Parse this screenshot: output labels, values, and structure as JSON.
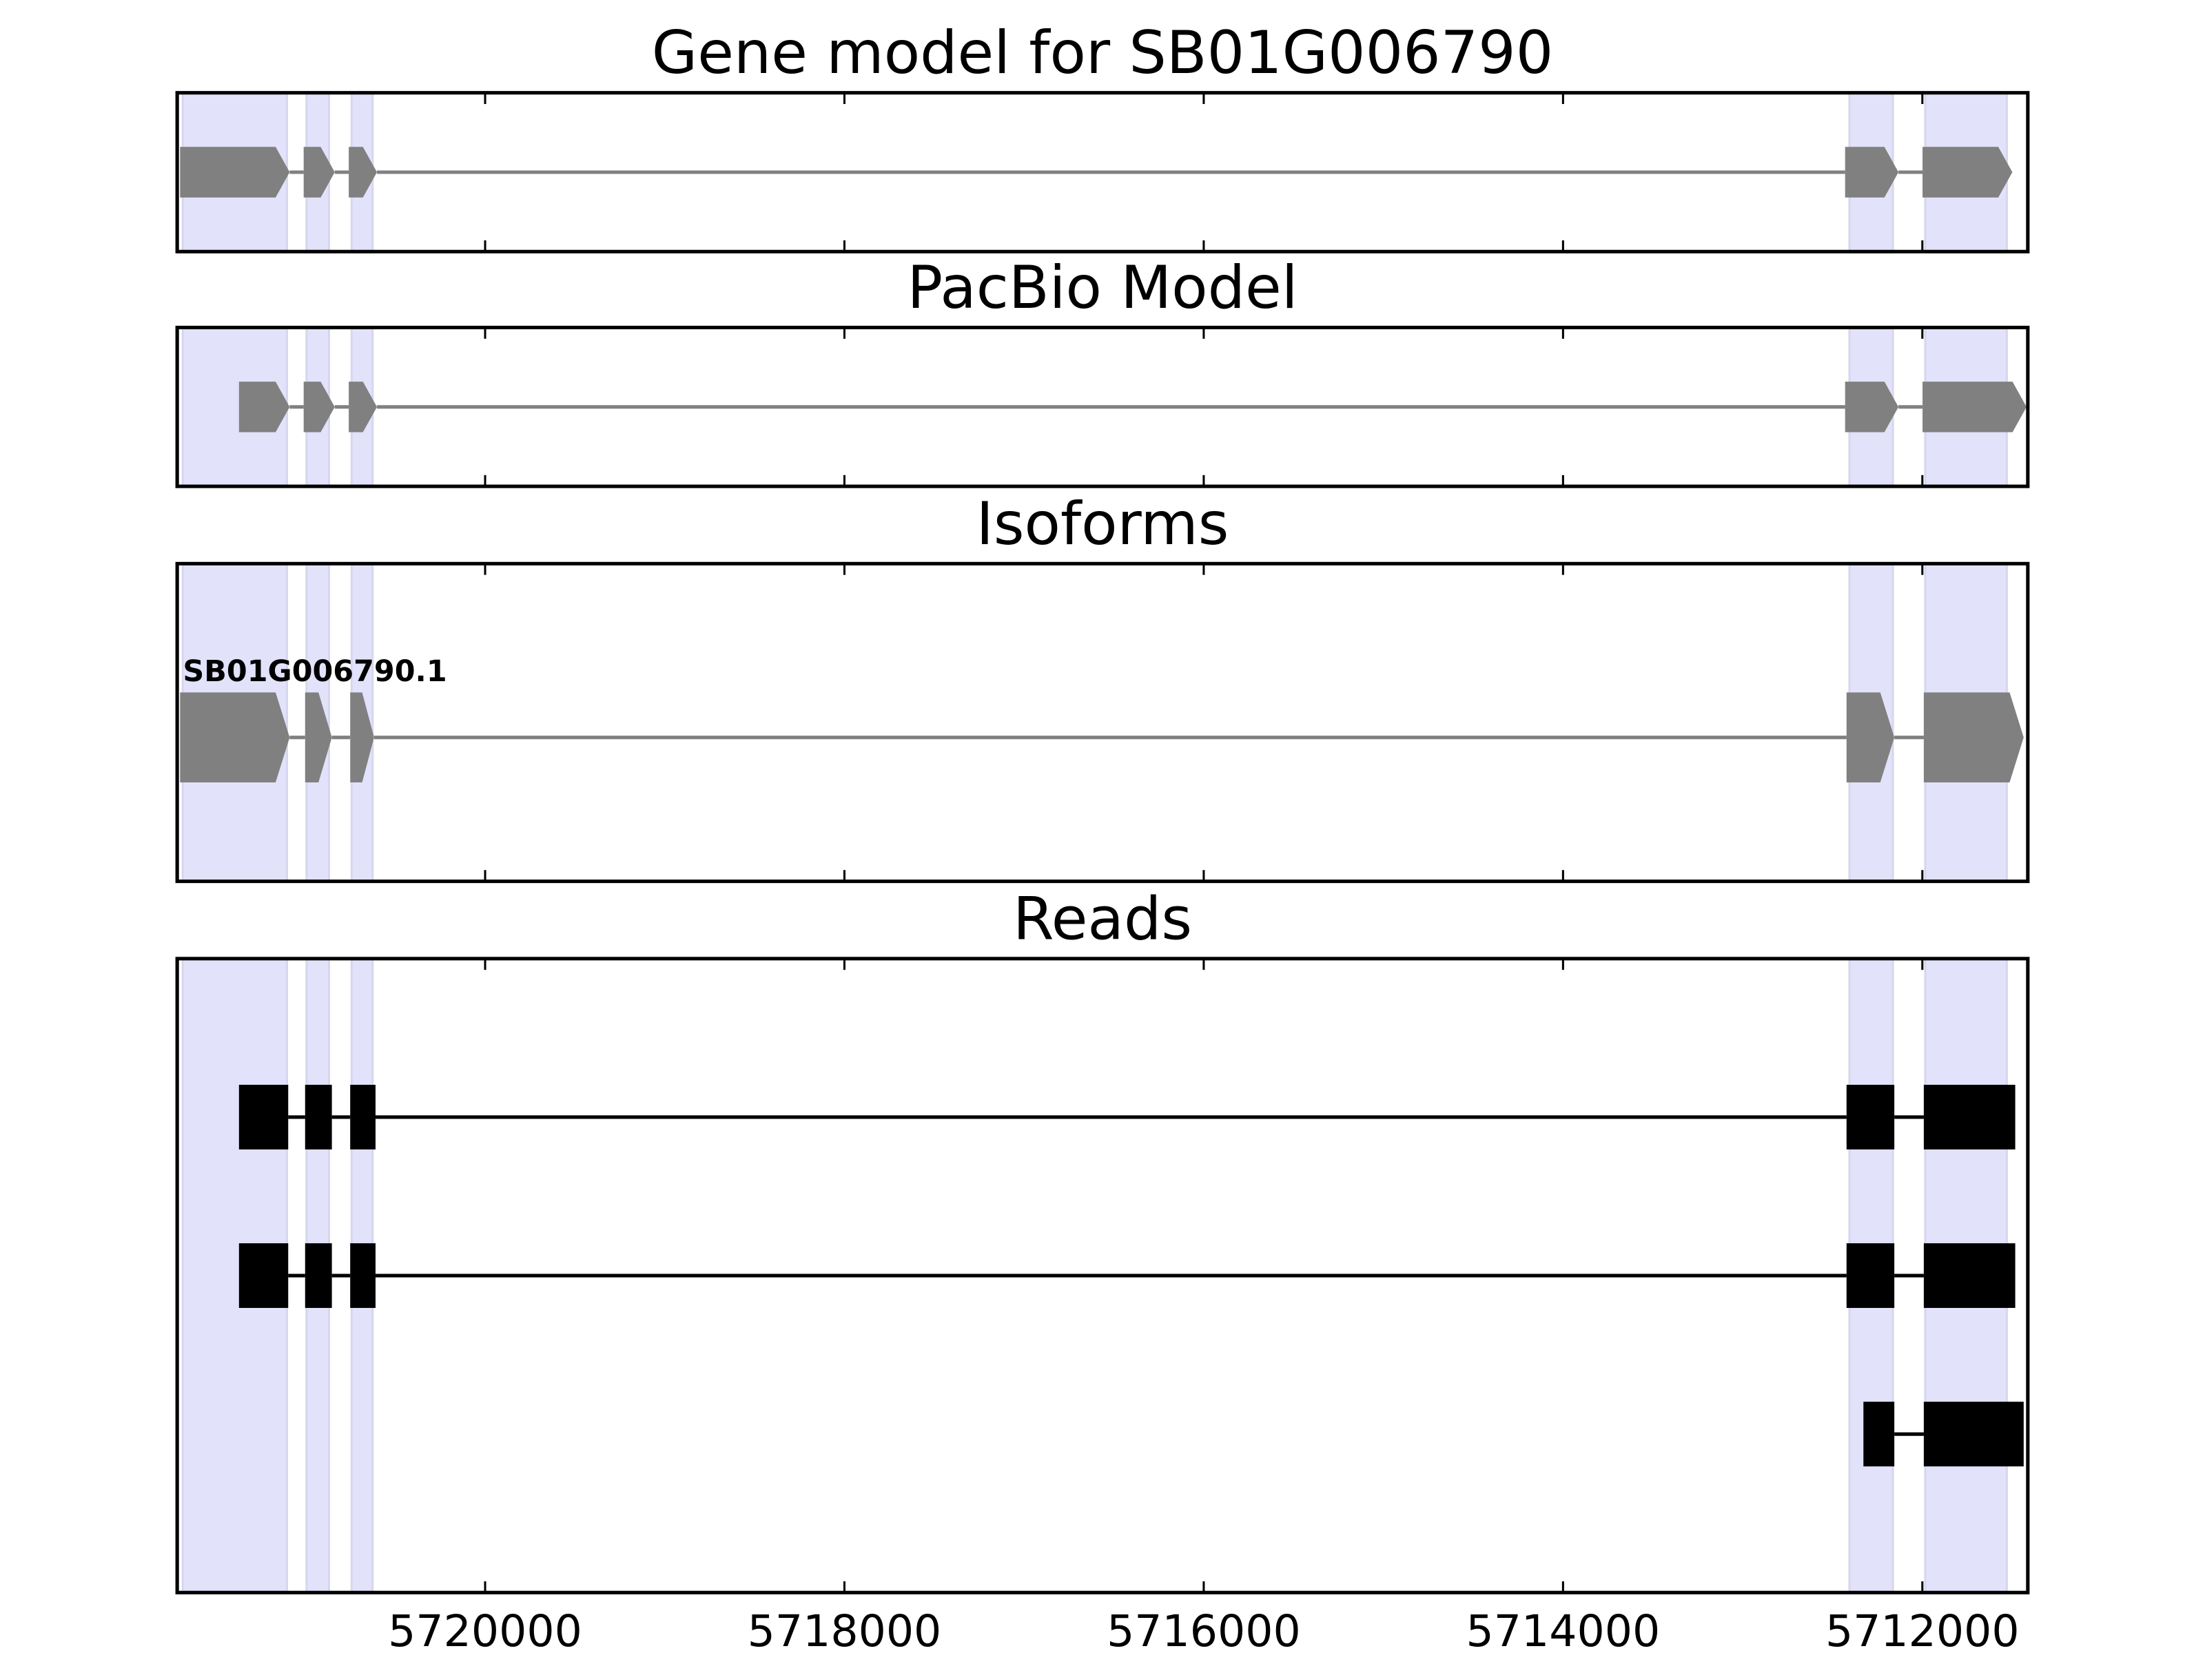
{
  "chart_data": [
    {
      "type": "gene_track",
      "title": "Gene model for SB01G006790",
      "xlim": [
        5721714,
        5711413
      ],
      "xticks": [
        5720000,
        5718000,
        5716000,
        5714000,
        5712000
      ],
      "tick_labels": false,
      "highlights": [
        [
          5721683,
          5721103
        ],
        [
          5720994,
          5720869
        ],
        [
          5720743,
          5720626
        ],
        [
          5712406,
          5712164
        ],
        [
          5711984,
          5711530
        ]
      ],
      "shape": "arrow",
      "color": "#808080",
      "features": [
        {
          "exons": [
            [
              5721698,
              5721088
            ],
            [
              5721010,
              5720837
            ],
            [
              5720759,
              5720602
            ],
            [
              5712430,
              5712133
            ],
            [
              5711999,
              5711499
            ]
          ]
        }
      ]
    },
    {
      "type": "gene_track",
      "title": "PacBio Model",
      "xlim": [
        5721714,
        5711413
      ],
      "xticks": [
        5720000,
        5718000,
        5716000,
        5714000,
        5712000
      ],
      "tick_labels": false,
      "highlights": [
        [
          5721683,
          5721103
        ],
        [
          5720994,
          5720869
        ],
        [
          5720743,
          5720626
        ],
        [
          5712406,
          5712164
        ],
        [
          5711984,
          5711530
        ]
      ],
      "shape": "arrow",
      "color": "#808080",
      "features": [
        {
          "exons": [
            [
              5721370,
              5721088
            ],
            [
              5721010,
              5720837
            ],
            [
              5720759,
              5720602
            ],
            [
              5712430,
              5712133
            ],
            [
              5711999,
              5711420
            ]
          ]
        }
      ]
    },
    {
      "type": "gene_track",
      "title": "Isoforms",
      "xlim": [
        5721714,
        5711413
      ],
      "xticks": [
        5720000,
        5718000,
        5716000,
        5714000,
        5712000
      ],
      "tick_labels": false,
      "highlights": [
        [
          5721683,
          5721103
        ],
        [
          5720994,
          5720869
        ],
        [
          5720743,
          5720626
        ],
        [
          5712406,
          5712164
        ],
        [
          5711984,
          5711530
        ]
      ],
      "shape": "arrow",
      "color": "#808080",
      "features": [
        {
          "name": "SB01G006790.1",
          "exons": [
            [
              5721698,
              5721088
            ],
            [
              5721002,
              5720853
            ],
            [
              5720751,
              5720618
            ],
            [
              5712422,
              5712156
            ],
            [
              5711992,
              5711436
            ]
          ]
        }
      ]
    },
    {
      "type": "gene_track",
      "title": "Reads",
      "xlim": [
        5721714,
        5711413
      ],
      "xticks": [
        5720000,
        5718000,
        5716000,
        5714000,
        5712000
      ],
      "tick_labels": true,
      "highlights": [
        [
          5721683,
          5721103
        ],
        [
          5720994,
          5720869
        ],
        [
          5720743,
          5720626
        ],
        [
          5712406,
          5712164
        ],
        [
          5711984,
          5711530
        ]
      ],
      "shape": "box",
      "color": "#000000",
      "features": [
        {
          "exons": [
            [
              5721370,
              5721096
            ],
            [
              5721002,
              5720853
            ],
            [
              5720751,
              5720610
            ],
            [
              5712422,
              5712156
            ],
            [
              5711992,
              5711483
            ]
          ]
        },
        {
          "exons": [
            [
              5721370,
              5721096
            ],
            [
              5721002,
              5720853
            ],
            [
              5720751,
              5720610
            ],
            [
              5712422,
              5712156
            ],
            [
              5711992,
              5711483
            ]
          ]
        },
        {
          "exons": [
            [
              5712328,
              5712156
            ],
            [
              5711992,
              5711436
            ]
          ]
        }
      ]
    }
  ]
}
